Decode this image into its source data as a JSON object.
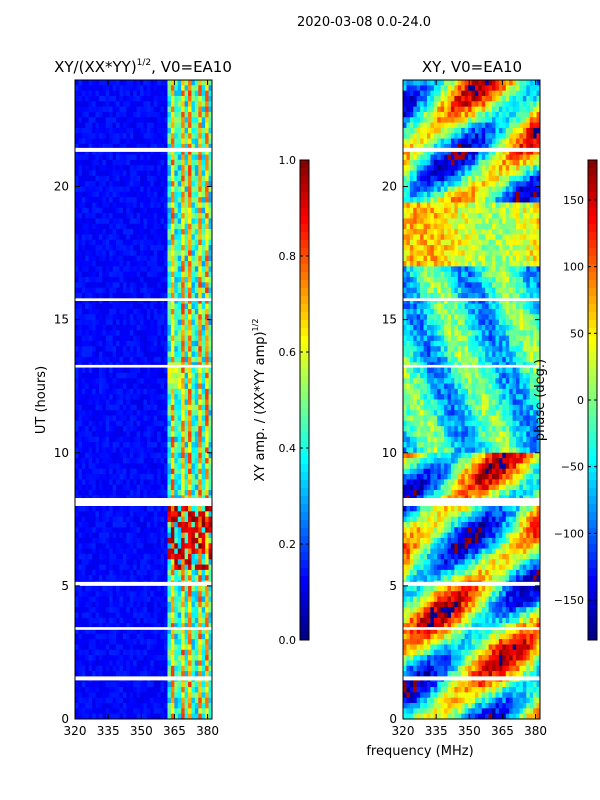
{
  "chart_data": {
    "type": "heatmap",
    "suptitle": "2020-03-08 0.0-24.0",
    "shared_xlabel": "frequency (MHz)",
    "panels": [
      {
        "title": "XY/(XX*YY)^1/2, V0=EA10",
        "title_main": "XY/(XX*YY)",
        "title_sup": "1/2",
        "title_tail": ", V0=EA10",
        "ylabel": "UT (hours)",
        "xlim": [
          320,
          382
        ],
        "ylim": [
          0,
          24
        ],
        "xticks": [
          "320",
          "335",
          "350",
          "365",
          "380"
        ],
        "xtick_values": [
          320,
          335,
          350,
          365,
          380
        ],
        "yticks": [
          "0",
          "5",
          "10",
          "15",
          "20"
        ],
        "ytick_values": [
          0,
          5,
          10,
          15,
          20
        ],
        "quantity": "amplitude",
        "colorbar": {
          "label": "XY amp. / (XX*YY amp)^1/2",
          "label_main": "XY amp. / (XX*YY amp)",
          "label_sup": "1/2",
          "range": [
            0.0,
            1.0
          ],
          "ticks": [
            "0.0",
            "0.2",
            "0.4",
            "0.6",
            "0.8",
            "1.0"
          ],
          "tick_values": [
            0.0,
            0.2,
            0.4,
            0.6,
            0.8,
            1.0
          ]
        }
      },
      {
        "title": "XY, V0=EA10",
        "xlim": [
          320,
          382
        ],
        "ylim": [
          0,
          24
        ],
        "xticks": [
          "320",
          "335",
          "350",
          "365",
          "380"
        ],
        "xtick_values": [
          320,
          335,
          350,
          365,
          380
        ],
        "yticks": [
          "0",
          "5",
          "10",
          "15",
          "20"
        ],
        "ytick_values": [
          0,
          5,
          10,
          15,
          20
        ],
        "quantity": "phase",
        "colorbar": {
          "label": "phase (deg.)",
          "range": [
            -180,
            180
          ],
          "ticks": [
            "−150",
            "−100",
            "−50",
            "0",
            "50",
            "100",
            "150"
          ],
          "tick_values": [
            -150,
            -100,
            -50,
            0,
            50,
            100,
            150
          ]
        }
      }
    ],
    "flagged_gaps_ut_hours": [
      [
        1.45,
        1.6
      ],
      [
        3.35,
        3.45
      ],
      [
        5.0,
        5.15
      ],
      [
        8.0,
        8.3
      ],
      [
        13.2,
        13.3
      ],
      [
        15.7,
        15.8
      ],
      [
        21.3,
        21.45
      ]
    ],
    "colormap": "jet"
  }
}
